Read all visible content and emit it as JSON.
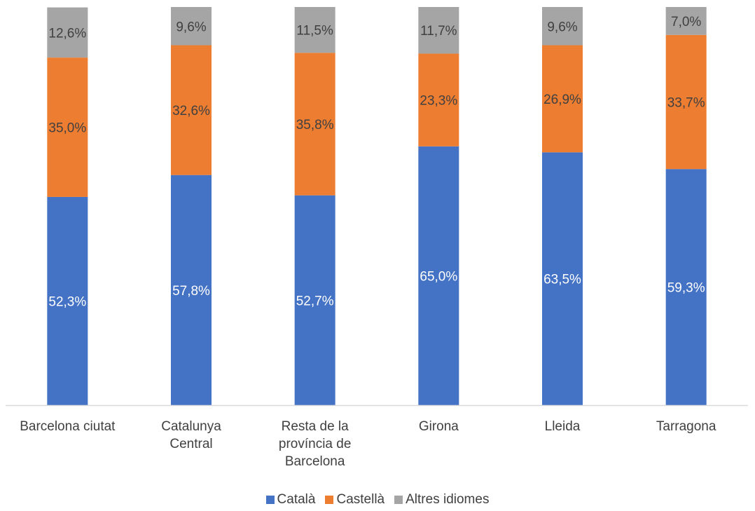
{
  "chart_data": {
    "type": "bar",
    "stacked": true,
    "categories": [
      [
        "Barcelona ciutat"
      ],
      [
        "Catalunya",
        "Central"
      ],
      [
        "Resta de la",
        "província de",
        "Barcelona"
      ],
      [
        "Girona"
      ],
      [
        "Lleida"
      ],
      [
        "Tarragona"
      ]
    ],
    "series": [
      {
        "name": "Català",
        "color": "#4472C4",
        "label_color": "#FFFFFF",
        "values": [
          52.3,
          57.8,
          52.7,
          65.0,
          63.5,
          59.3
        ],
        "labels": [
          "52,3%",
          "57,8%",
          "52,7%",
          "65,0%",
          "63,5%",
          "59,3%"
        ]
      },
      {
        "name": "Castellà",
        "color": "#ED7D31",
        "label_color": "#404040",
        "values": [
          35.0,
          32.6,
          35.8,
          23.3,
          26.9,
          33.7
        ],
        "labels": [
          "35,0%",
          "32,6%",
          "35,8%",
          "23,3%",
          "26,9%",
          "33,7%"
        ]
      },
      {
        "name": "Altres idiomes",
        "color": "#A5A5A5",
        "label_color": "#404040",
        "values": [
          12.6,
          9.6,
          11.5,
          11.7,
          9.6,
          7.0
        ],
        "labels": [
          "12,6%",
          "9,6%",
          "11,5%",
          "11,7%",
          "9,6%",
          "7,0%"
        ]
      }
    ],
    "ylim": [
      0,
      100
    ],
    "grid": false,
    "legend_position": "bottom"
  }
}
